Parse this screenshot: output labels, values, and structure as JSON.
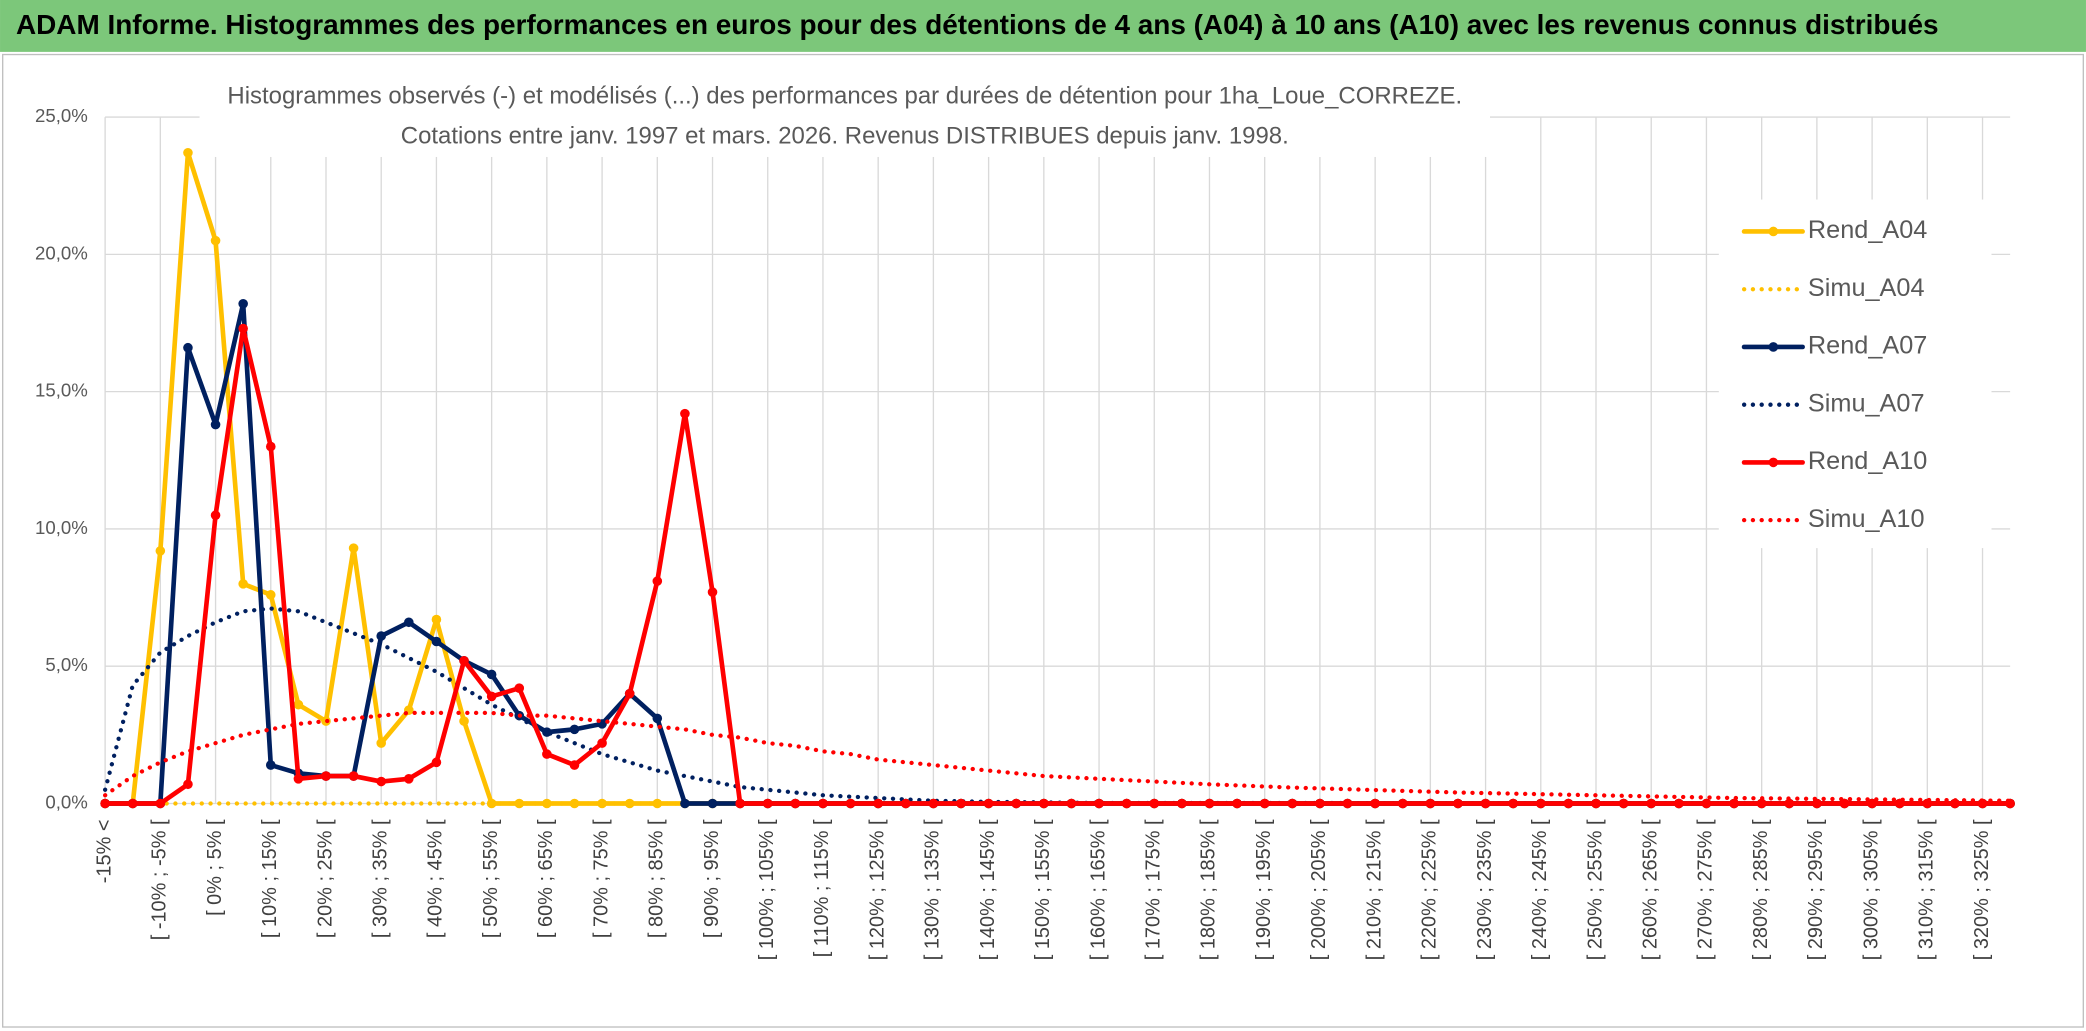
{
  "header": {
    "title": "ADAM Informe. Histogrammes des performances en euros pour des détentions de 4 ans (A04) à 10 ans (A10) avec les revenus connus distribués"
  },
  "chart_data": {
    "type": "line",
    "title": "Histogrammes observés (-) et modélisés (...) des performances par durées de détention pour 1ha_Loue_CORREZE.",
    "subtitle": "Cotations entre janv. 1997 et mars. 2026. Revenus DISTRIBUES depuis janv. 1998.",
    "categories": [
      "-15% <",
      null,
      "[ -10% ; -5% [",
      null,
      "[ 0% ; 5% [",
      null,
      "[ 10% ; 15% [",
      null,
      "[ 20% ; 25% [",
      null,
      "[ 30% ; 35% [",
      null,
      "[ 40% ; 45% [",
      null,
      "[ 50% ; 55% [",
      null,
      "[ 60% ; 65% [",
      null,
      "[ 70% ; 75% [",
      null,
      "[ 80% ; 85% [",
      null,
      "[ 90% ; 95% [",
      null,
      "[ 100% ; 105% [",
      null,
      "[ 110% ; 115% [",
      null,
      "[ 120% ; 125% [",
      null,
      "[ 130% ; 135% [",
      null,
      "[ 140% ; 145% [",
      null,
      "[ 150% ; 155% [",
      null,
      "[ 160% ; 165% [",
      null,
      "[ 170% ; 175% [",
      null,
      "[ 180% ; 185% [",
      null,
      "[ 190% ; 195% [",
      null,
      "[ 200% ; 205% [",
      null,
      "[ 210% ; 215% [",
      null,
      "[ 220% ; 225% [",
      null,
      "[ 230% ; 235% [",
      null,
      "[ 240% ; 245% [",
      null,
      "[ 250% ; 255% [",
      null,
      "[ 260% ; 265% [",
      null,
      "[ 270% ; 275% [",
      null,
      "[ 280% ; 285% [",
      null,
      "[ 290% ; 295% [",
      null,
      "[ 300% ; 305% [",
      null,
      "[ 310% ; 315% [",
      null,
      "[ 320% ; 325% [",
      null
    ],
    "series": [
      {
        "name": "Rend_A04",
        "color": "#FFC000",
        "style": "solid",
        "markers": true,
        "values": [
          0,
          0,
          9.2,
          23.7,
          20.5,
          8.0,
          7.6,
          3.6,
          3.0,
          9.3,
          2.2,
          3.4,
          6.7,
          3.0,
          0,
          0,
          0,
          0,
          0,
          0,
          0,
          0,
          0,
          0,
          0,
          0,
          0,
          0,
          0,
          0,
          0,
          0,
          0,
          0,
          0,
          0,
          0,
          0,
          0,
          0,
          0,
          0,
          0,
          0,
          0,
          0,
          0,
          0,
          0,
          0,
          0,
          0,
          0,
          0,
          0,
          0,
          0,
          0,
          0,
          0,
          0,
          0,
          0,
          0,
          0,
          0,
          0,
          0,
          0,
          0
        ]
      },
      {
        "name": "Simu_A04",
        "color": "#FFC000",
        "style": "dotted",
        "markers": false,
        "values": [
          0,
          0,
          0,
          0,
          0,
          0,
          0,
          0,
          0,
          0,
          0,
          0,
          0,
          0,
          0,
          0,
          0,
          0,
          0,
          0,
          0,
          0,
          0,
          0,
          0,
          0,
          0,
          0,
          0,
          0,
          0,
          0,
          0,
          0,
          0,
          0,
          0,
          0,
          0,
          0,
          0,
          0,
          0,
          0,
          0,
          0,
          0,
          0,
          0,
          0,
          0,
          0,
          0,
          0,
          0,
          0,
          0,
          0,
          0,
          0,
          0,
          0,
          0,
          0,
          0,
          0,
          0,
          0,
          0,
          0
        ]
      },
      {
        "name": "Rend_A07",
        "color": "#002060",
        "style": "solid",
        "markers": true,
        "values": [
          0,
          0,
          0,
          16.6,
          13.8,
          18.2,
          1.4,
          1.1,
          1.0,
          1.0,
          6.1,
          6.6,
          5.9,
          5.2,
          4.7,
          3.2,
          2.6,
          2.7,
          2.9,
          4.0,
          3.1,
          0,
          0,
          0,
          0,
          0,
          0,
          0,
          0,
          0,
          0,
          0,
          0,
          0,
          0,
          0,
          0,
          0,
          0,
          0,
          0,
          0,
          0,
          0,
          0,
          0,
          0,
          0,
          0,
          0,
          0,
          0,
          0,
          0,
          0,
          0,
          0,
          0,
          0,
          0,
          0,
          0,
          0,
          0,
          0,
          0,
          0,
          0,
          0,
          0
        ]
      },
      {
        "name": "Simu_A07",
        "color": "#002060",
        "style": "dotted",
        "markers": false,
        "values": [
          0.5,
          4.3,
          5.5,
          6.1,
          6.6,
          7.0,
          7.1,
          7.0,
          6.6,
          6.2,
          5.8,
          5.3,
          4.8,
          4.2,
          3.6,
          3.1,
          2.6,
          2.2,
          1.8,
          1.5,
          1.2,
          1.0,
          0.8,
          0.6,
          0.5,
          0.4,
          0.3,
          0.25,
          0.2,
          0.15,
          0.1,
          0.08,
          0.06,
          0.05,
          0.04,
          0.03,
          0.02,
          0.02,
          0.02,
          0.02,
          0.02,
          0.02,
          0.02,
          0.02,
          0.02,
          0.02,
          0.01,
          0.01,
          0.01,
          0.01,
          0.01,
          0.01,
          0.01,
          0.01,
          0.01,
          0.01,
          0.01,
          0.01,
          0.01,
          0.01,
          0.01,
          0.01,
          0.01,
          0.01,
          0.01,
          0.01,
          0.01,
          0.01,
          0.01,
          0.01
        ]
      },
      {
        "name": "Rend_A10",
        "color": "#FF0000",
        "style": "solid",
        "markers": true,
        "values": [
          0,
          0,
          0,
          0.7,
          10.5,
          17.3,
          13.0,
          0.9,
          1.0,
          1.0,
          0.8,
          0.9,
          1.5,
          5.2,
          3.9,
          4.2,
          1.8,
          1.4,
          2.2,
          4.0,
          8.1,
          14.2,
          7.7,
          0,
          0,
          0,
          0,
          0,
          0,
          0,
          0,
          0,
          0,
          0,
          0,
          0,
          0,
          0,
          0,
          0,
          0,
          0,
          0,
          0,
          0,
          0,
          0,
          0,
          0,
          0,
          0,
          0,
          0,
          0,
          0,
          0,
          0,
          0,
          0,
          0,
          0,
          0,
          0,
          0,
          0,
          0,
          0,
          0,
          0,
          0
        ]
      },
      {
        "name": "Simu_A10",
        "color": "#FF0000",
        "style": "dotted",
        "markers": false,
        "values": [
          0.3,
          1.0,
          1.5,
          1.9,
          2.2,
          2.5,
          2.7,
          2.9,
          3.0,
          3.1,
          3.2,
          3.3,
          3.3,
          3.3,
          3.3,
          3.2,
          3.2,
          3.1,
          3.0,
          2.9,
          2.8,
          2.7,
          2.5,
          2.4,
          2.2,
          2.1,
          1.9,
          1.8,
          1.6,
          1.5,
          1.4,
          1.3,
          1.2,
          1.1,
          1.0,
          0.95,
          0.9,
          0.85,
          0.8,
          0.75,
          0.7,
          0.66,
          0.62,
          0.58,
          0.55,
          0.52,
          0.49,
          0.46,
          0.43,
          0.4,
          0.38,
          0.36,
          0.34,
          0.32,
          0.3,
          0.28,
          0.26,
          0.24,
          0.22,
          0.2,
          0.19,
          0.18,
          0.17,
          0.16,
          0.15,
          0.14,
          0.13,
          0.12,
          0.11,
          0.1
        ]
      }
    ],
    "ylim": [
      0,
      25
    ],
    "yticks": [
      {
        "value": 0,
        "label": "0,0%"
      },
      {
        "value": 5,
        "label": "5,0%"
      },
      {
        "value": 10,
        "label": "10,0%"
      },
      {
        "value": 15,
        "label": "15,0%"
      },
      {
        "value": 20,
        "label": "20,0%"
      },
      {
        "value": 25,
        "label": "25,0%"
      }
    ],
    "grid": true,
    "legend": "right"
  }
}
